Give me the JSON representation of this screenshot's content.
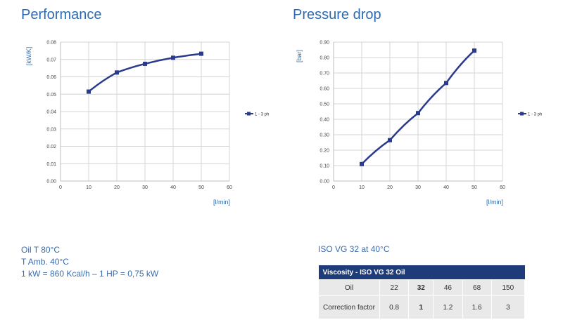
{
  "charts": {
    "performance": {
      "title": "Performance"
    },
    "pressure": {
      "title": "Pressure drop"
    }
  },
  "chart_data": [
    {
      "type": "line",
      "title": "Performance",
      "xlabel": "[l/min]",
      "ylabel": "[kW/K]",
      "xlim": [
        0,
        60
      ],
      "ylim": [
        0,
        0.08
      ],
      "xticks": [
        "0",
        "10",
        "20",
        "30",
        "40",
        "50",
        "60"
      ],
      "yticks": [
        "0.00",
        "0.01",
        "0.02",
        "0.03",
        "0.04",
        "0.05",
        "0.06",
        "0.07",
        "0.08"
      ],
      "grid": true,
      "legend_placement": "right",
      "series": [
        {
          "name": "1 - 3 ph",
          "color": "#2a3a8c",
          "x": [
            10,
            20,
            30,
            40,
            50
          ],
          "y": [
            0.0515,
            0.0625,
            0.0675,
            0.071,
            0.0733
          ]
        }
      ]
    },
    {
      "type": "line",
      "title": "Pressure drop",
      "xlabel": "[l/min]",
      "ylabel": "[bar]",
      "xlim": [
        0,
        60
      ],
      "ylim": [
        0,
        0.9
      ],
      "xticks": [
        "0",
        "10",
        "20",
        "30",
        "40",
        "50",
        "60"
      ],
      "yticks": [
        "0.00",
        "0.10",
        "0.20",
        "0.30",
        "0.40",
        "0.50",
        "0.60",
        "0.70",
        "0.80",
        "0.90"
      ],
      "grid": true,
      "legend_placement": "right",
      "series": [
        {
          "name": "1 - 3 ph",
          "color": "#2a3a8c",
          "x": [
            10,
            20,
            30,
            40,
            50
          ],
          "y": [
            0.11,
            0.265,
            0.44,
            0.635,
            0.845
          ]
        }
      ]
    }
  ],
  "notes": {
    "line1": "Oil T 80°C",
    "line2": "T Amb. 40°C",
    "line3": "1 kW = 860 Kcal/h – 1 HP = 0,75 kW"
  },
  "iso_label": "ISO VG 32 at 40°C",
  "viscosity_table": {
    "header": "Viscosity - ISO VG 32 Oil",
    "row1_label": "Oil",
    "row1": [
      "22",
      "32",
      "46",
      "68",
      "150"
    ],
    "row2_label": "Correction factor",
    "row2": [
      "0.8",
      "1",
      "1.2",
      "1.6",
      "3"
    ]
  }
}
